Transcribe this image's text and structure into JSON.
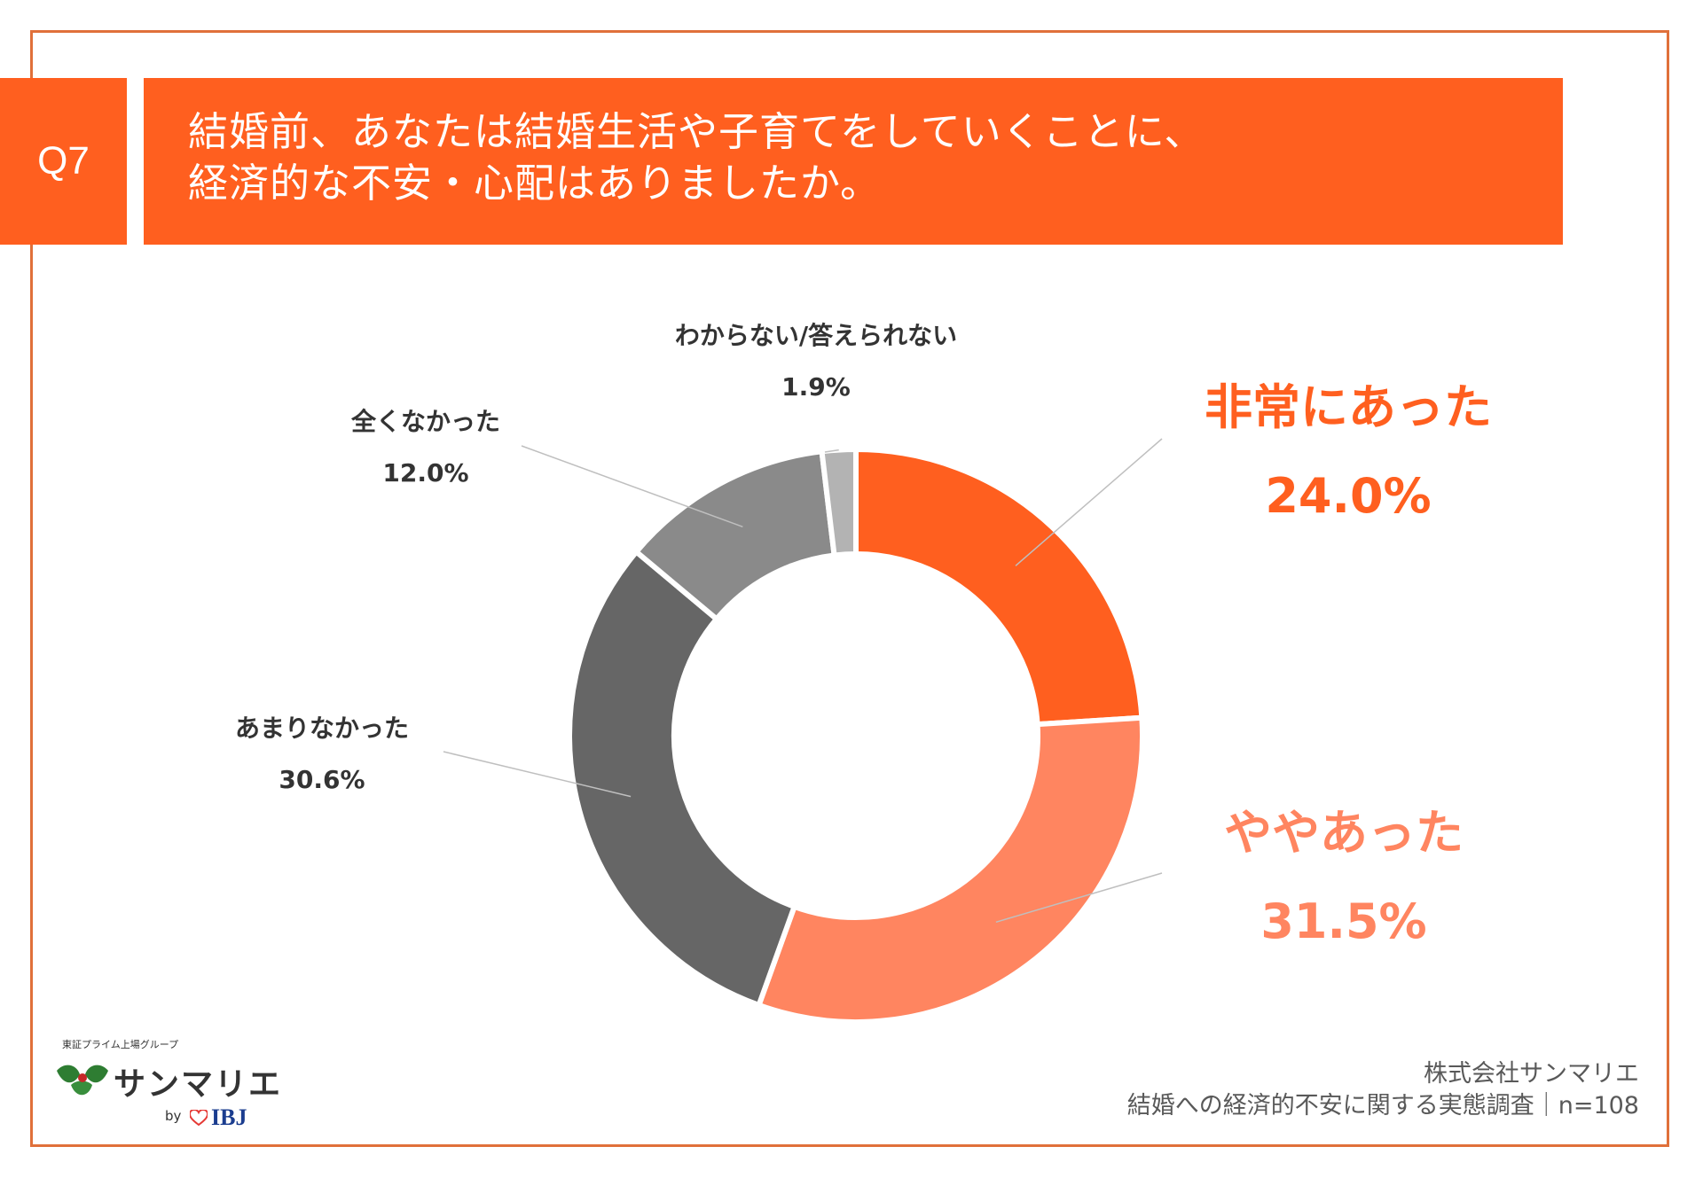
{
  "header": {
    "q_label": "Q7",
    "question_line1": "結婚前、あなたは結婚生活や子育てをしていくことに、",
    "question_line2": "経済的な不安・心配はありましたか。"
  },
  "chart_data": {
    "type": "pie",
    "style": "donut",
    "categories": [
      "非常にあった",
      "ややあった",
      "あまりなかった",
      "全くなかった",
      "わからない/答えられない"
    ],
    "values": [
      24.0,
      31.5,
      30.6,
      12.0,
      1.9
    ],
    "value_labels": [
      "24.0%",
      "31.5%",
      "30.6%",
      "12.0%",
      "1.9%"
    ],
    "colors": [
      "#ff5f1f",
      "#ff8560",
      "#666666",
      "#8a8a8a",
      "#b3b3b3"
    ],
    "unit": "%",
    "start_angle": "12 o'clock",
    "direction": "clockwise"
  },
  "logo": {
    "tagline": "東証プライム上場グループ",
    "name": "サンマリエ",
    "by": "by",
    "partner": "IBJ"
  },
  "credit": {
    "company": "株式会社サンマリエ",
    "survey": "結婚への経済的不安に関する実態調査｜n=108"
  }
}
